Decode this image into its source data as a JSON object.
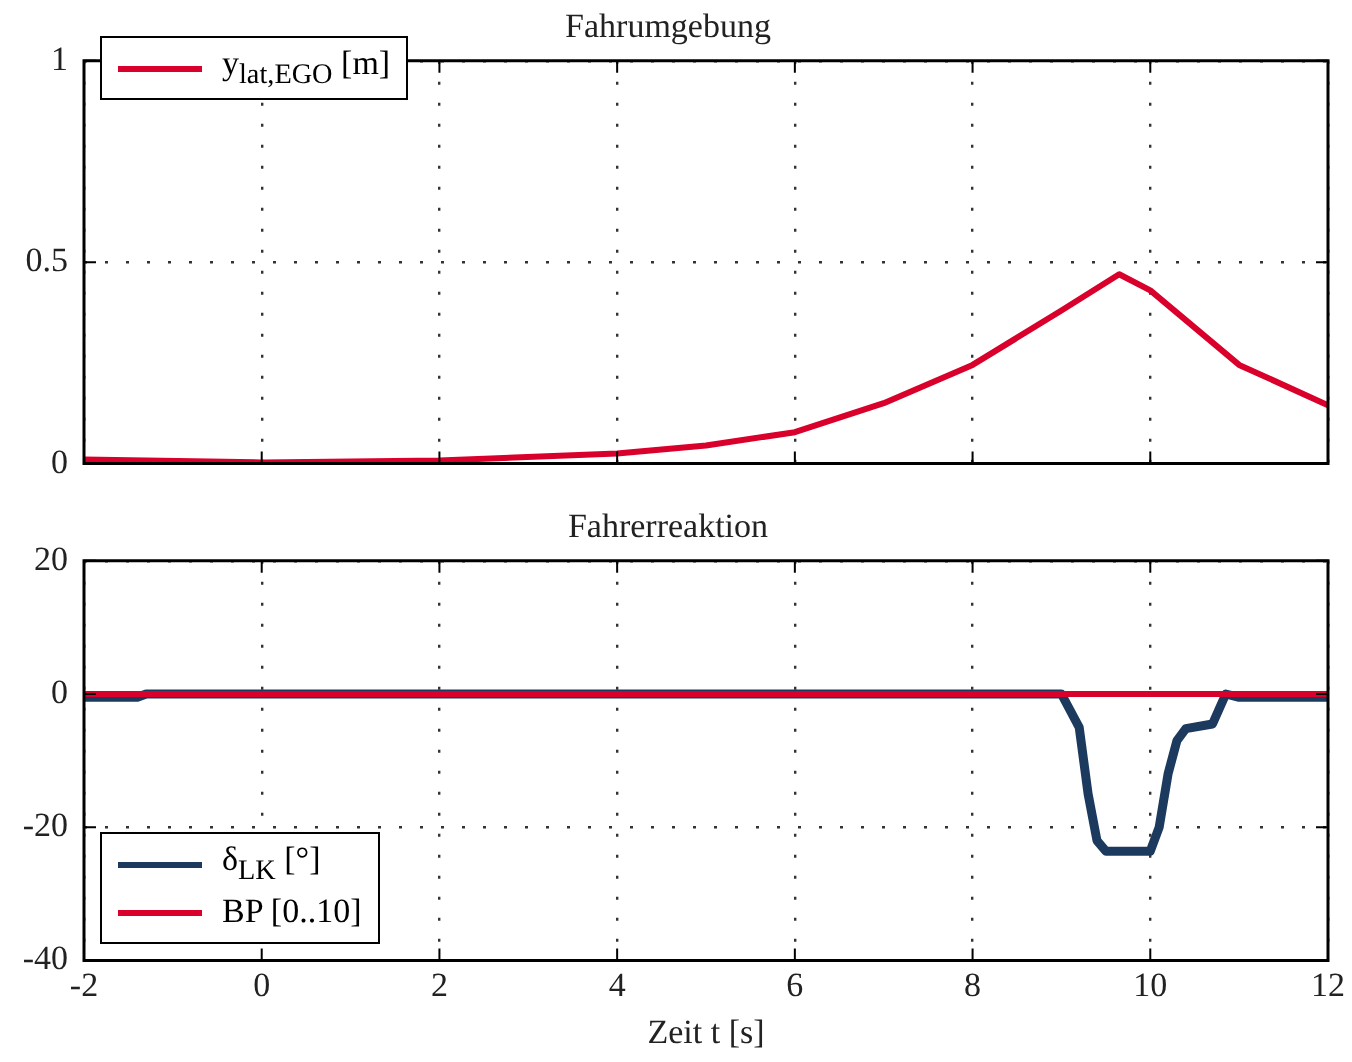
{
  "chart_data": [
    {
      "type": "line",
      "title": "Fahrumgebung",
      "x": [
        -2,
        0,
        2,
        4,
        5,
        6,
        7,
        8,
        9,
        9.65,
        10,
        11,
        12
      ],
      "series": [
        {
          "name": "y$_{lat,EGO}$ [m]",
          "color": "#d9002c",
          "values": [
            0.01,
            0.003,
            0.008,
            0.025,
            0.045,
            0.078,
            0.15,
            0.245,
            0.38,
            0.47,
            0.43,
            0.245,
            0.145
          ]
        }
      ],
      "xlim": [
        -2,
        12
      ],
      "xticks": [
        -2,
        0,
        2,
        4,
        6,
        8,
        10,
        12
      ],
      "ylim": [
        0,
        1
      ],
      "yticks": [
        0,
        0.5,
        1
      ],
      "grid": true,
      "legend": "top left",
      "tick_labels": "y",
      "marker": "none",
      "line_style": "solid"
    },
    {
      "type": "line",
      "title": "Fahrerreaktion",
      "xlabel": "Zeit t [s]",
      "series": [
        {
          "name": "δ$_{LK}$ [°]",
          "color": "#1c3a5e",
          "x": [
            -2,
            -1.4,
            -1.3,
            9,
            9.2,
            9.3,
            9.4,
            9.5,
            10,
            10.1,
            10.2,
            10.3,
            10.4,
            10.7,
            10.85,
            11,
            12
          ],
          "values": [
            -0.5,
            -0.5,
            0,
            0,
            -5,
            -15,
            -22,
            -23.6,
            -23.6,
            -20,
            -12,
            -7,
            -5.2,
            -4.5,
            0,
            -0.5,
            -0.5
          ]
        },
        {
          "name": "BP [0..10]",
          "color": "#d9002c",
          "x": [
            -2,
            12
          ],
          "values": [
            0,
            0
          ]
        }
      ],
      "xlim": [
        -2,
        12
      ],
      "xticks": [
        -2,
        0,
        2,
        4,
        6,
        8,
        10,
        12
      ],
      "ylim": [
        -40,
        20
      ],
      "yticks": [
        -40,
        -20,
        0,
        20
      ],
      "grid": true,
      "legend": "bottom left",
      "marker": "none",
      "line_style": "solid"
    }
  ]
}
